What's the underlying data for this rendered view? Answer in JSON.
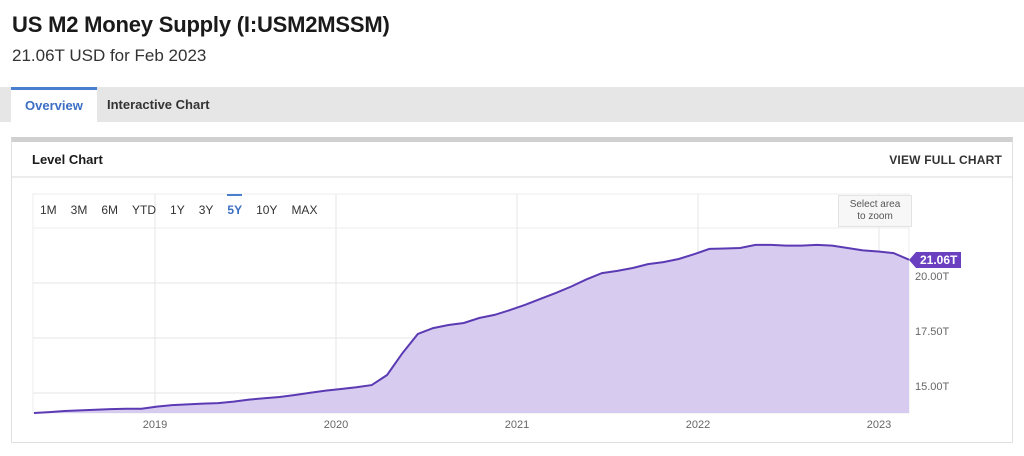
{
  "header": {
    "title": "US M2 Money Supply (I:USM2MSSM)",
    "subtitle": "21.06T USD for Feb 2023"
  },
  "tabs": [
    {
      "label": "Overview",
      "active": true
    },
    {
      "label": "Interactive Chart",
      "active": false
    }
  ],
  "card": {
    "title": "Level Chart",
    "view_full_label": "VIEW FULL CHART"
  },
  "range_buttons": [
    "1M",
    "3M",
    "6M",
    "YTD",
    "1Y",
    "3Y",
    "5Y",
    "10Y",
    "MAX"
  ],
  "active_range": "5Y",
  "zoom_hint": {
    "line1": "Select area",
    "line2": "to zoom"
  },
  "last_value_label": "21.06T",
  "colors": {
    "line": "#5b3ab3",
    "fill": "#d5c9ef",
    "badge": "#6a3fc0",
    "accent": "#4a7fd0"
  },
  "chart_data": {
    "type": "area",
    "title": "Level Chart",
    "xlabel": "",
    "ylabel": "",
    "x_ticks": [
      "2019",
      "2020",
      "2021",
      "2022",
      "2023"
    ],
    "y_ticks": [
      "15.00T",
      "17.50T",
      "20.00T"
    ],
    "ylim": [
      14.09,
      24.0
    ],
    "grid": true,
    "x": [
      "2018-05",
      "2018-06",
      "2018-07",
      "2018-08",
      "2018-09",
      "2018-10",
      "2018-11",
      "2018-12",
      "2019-01",
      "2019-02",
      "2019-03",
      "2019-04",
      "2019-05",
      "2019-06",
      "2019-07",
      "2019-08",
      "2019-09",
      "2019-10",
      "2019-11",
      "2019-12",
      "2020-01",
      "2020-02",
      "2020-03",
      "2020-04",
      "2020-05",
      "2020-06",
      "2020-07",
      "2020-08",
      "2020-09",
      "2020-10",
      "2020-11",
      "2020-12",
      "2021-01",
      "2021-02",
      "2021-03",
      "2021-04",
      "2021-05",
      "2021-06",
      "2021-07",
      "2021-08",
      "2021-09",
      "2021-10",
      "2021-11",
      "2021-12",
      "2022-01",
      "2022-02",
      "2022-03",
      "2022-04",
      "2022-05",
      "2022-06",
      "2022-07",
      "2022-08",
      "2022-09",
      "2022-10",
      "2022-11",
      "2022-12",
      "2023-01",
      "2023-02"
    ],
    "series": [
      {
        "name": "US M2 Money Supply",
        "unit": "T USD",
        "values": [
          14.09,
          14.13,
          14.18,
          14.21,
          14.24,
          14.27,
          14.28,
          14.28,
          14.38,
          14.45,
          14.48,
          14.52,
          14.54,
          14.61,
          14.7,
          14.76,
          14.82,
          14.91,
          15.01,
          15.11,
          15.18,
          15.26,
          15.36,
          15.82,
          16.81,
          17.68,
          17.95,
          18.09,
          18.18,
          18.41,
          18.55,
          18.77,
          19.01,
          19.28,
          19.55,
          19.84,
          20.17,
          20.45,
          20.55,
          20.68,
          20.86,
          20.95,
          21.09,
          21.31,
          21.55,
          21.57,
          21.59,
          21.73,
          21.73,
          21.7,
          21.7,
          21.73,
          21.7,
          21.59,
          21.48,
          21.43,
          21.36,
          21.06
        ]
      }
    ]
  }
}
